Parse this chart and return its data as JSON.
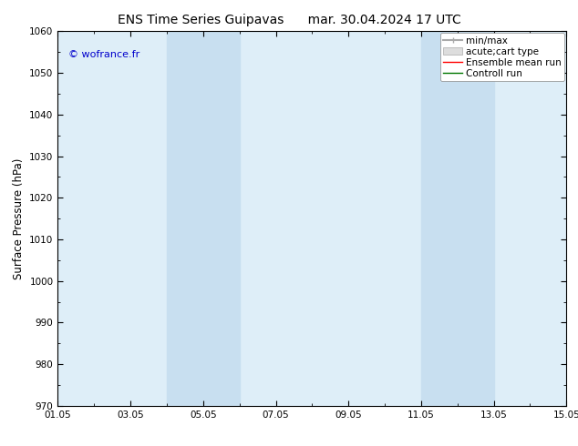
{
  "title_left": "ENS Time Series Guipavas",
  "title_right": "mar. 30.04.2024 17 UTC",
  "ylabel": "Surface Pressure (hPa)",
  "ylim": [
    970,
    1060
  ],
  "yticks": [
    970,
    980,
    990,
    1000,
    1010,
    1020,
    1030,
    1040,
    1050,
    1060
  ],
  "xlim": [
    0,
    14
  ],
  "xtick_positions": [
    0,
    2,
    4,
    6,
    8,
    10,
    12,
    14
  ],
  "xtick_labels": [
    "01.05",
    "03.05",
    "05.05",
    "07.05",
    "09.05",
    "11.05",
    "13.05",
    "15.05"
  ],
  "shade_bands": [
    {
      "xmin": 3,
      "xmax": 5,
      "color": "#c8dff0"
    },
    {
      "xmin": 10,
      "xmax": 12,
      "color": "#c8dff0"
    }
  ],
  "axes_bg_color": "#deeef8",
  "figure_bg_color": "#ffffff",
  "watermark": "© wofrance.fr",
  "watermark_color": "#0000cc",
  "legend_items": [
    {
      "label": "min/max",
      "color": "#aaaaaa",
      "lw": 1.5
    },
    {
      "label": "acute;cart type",
      "facecolor": "#dddddd",
      "edgecolor": "#aaaaaa"
    },
    {
      "label": "Ensemble mean run",
      "color": "#ff0000",
      "lw": 1.0
    },
    {
      "label": "Controll run",
      "color": "#007700",
      "lw": 1.0
    }
  ],
  "title_fontsize": 10,
  "tick_fontsize": 7.5,
  "ylabel_fontsize": 8.5,
  "legend_fontsize": 7.5
}
